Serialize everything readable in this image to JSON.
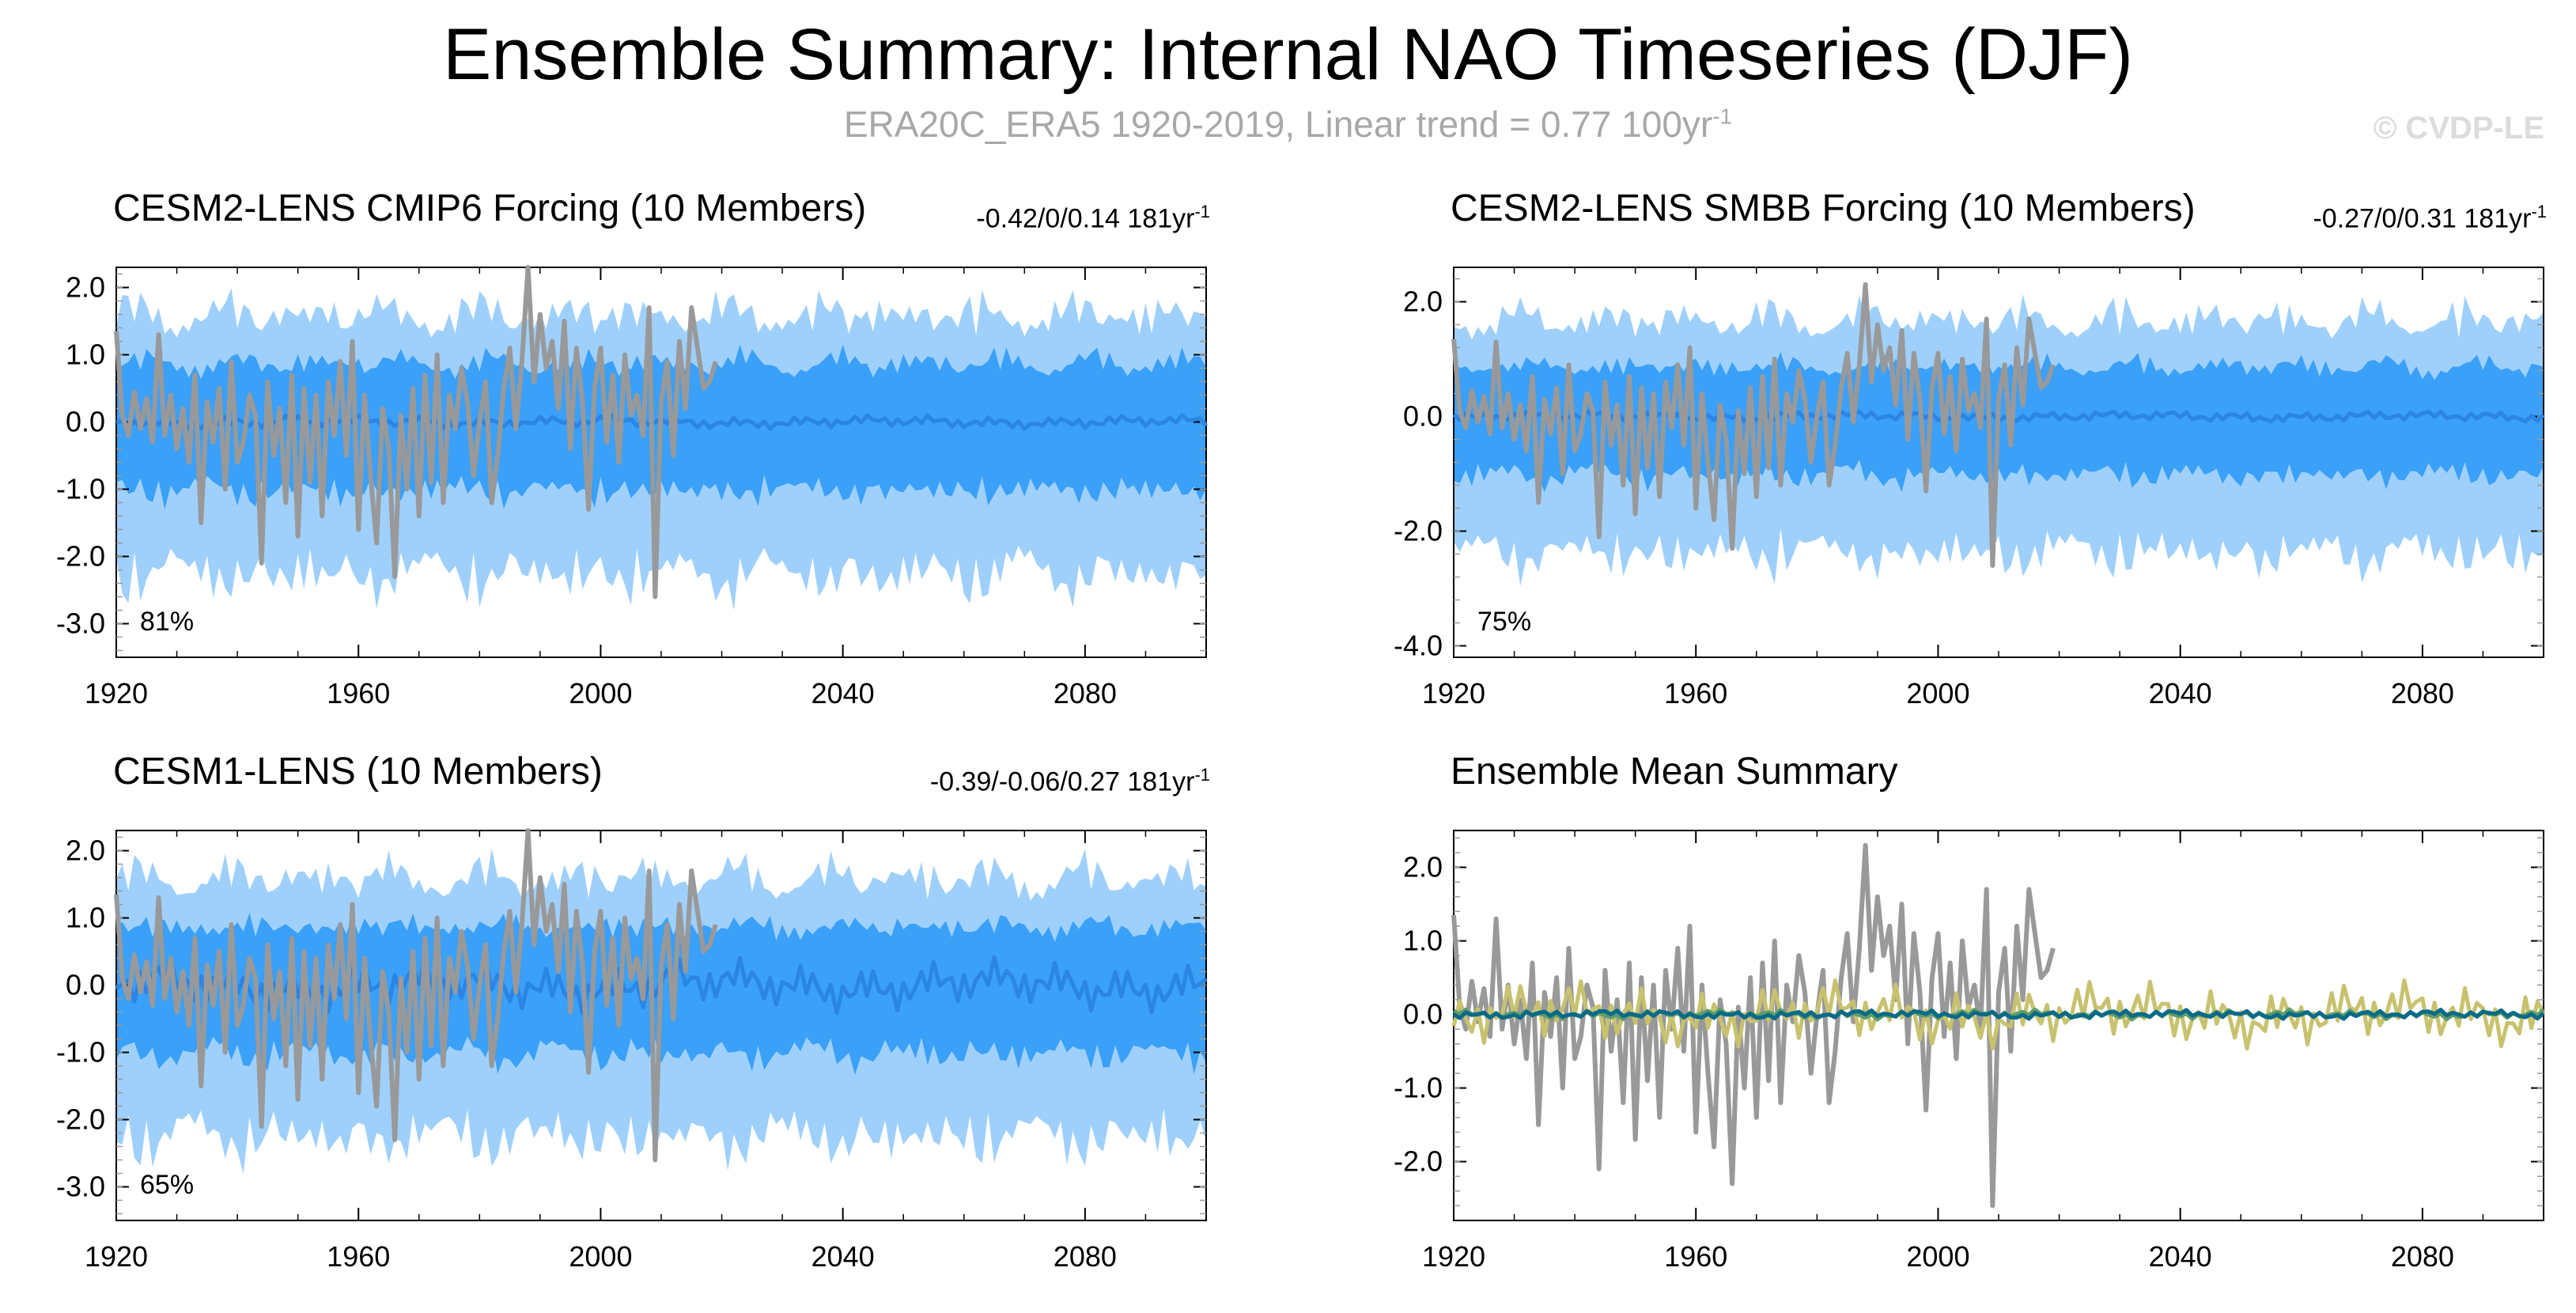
{
  "title": "Ensemble Summary: Internal NAO Timeseries (DJF)",
  "subtitle": {
    "text": "ERA20C_ERA5 1920-2019, Linear trend = 0.77 100yr",
    "sup": "-1"
  },
  "credit": "© CVDP-LE",
  "colors": {
    "outer_band": "#9fd0fb",
    "inner_band": "#3aa0f8",
    "ensemble_mean": "#2a85e4",
    "observations": "#999999",
    "cesm2_cmip6": "#0a6a87",
    "cesm2_smbb": "#5e9c6a",
    "cesm1": "#c8c26e"
  },
  "chart_data": [
    {
      "id": "cesm2-cmip6",
      "type": "area",
      "title": "CESM2-LENS CMIP6 Forcing (10 Members)",
      "stat": "-0.42/0/0.14 181yr",
      "stat_sup": "-1",
      "title_color": "#0a6a87",
      "percent_label": "81%",
      "xlim": [
        1920,
        2100
      ],
      "ylim": [
        -3.5,
        2.3
      ],
      "xticks": [
        1920,
        1960,
        2000,
        2040,
        2080
      ],
      "xtick_labels": [
        "1920",
        "1960",
        "2000",
        "2040",
        "2080"
      ],
      "yticks": [
        -3.0,
        -2.0,
        -1.0,
        0.0,
        1.0,
        2.0
      ],
      "ytick_labels": [
        "-3.0",
        "-2.0",
        "-1.0",
        "0.0",
        "1.0",
        "2.0"
      ],
      "series": [
        {
          "name": "ensemble range (min–max)",
          "kind": "outer-band",
          "amplitude": 1.9,
          "start": 1920,
          "end": 2100
        },
        {
          "name": "ensemble 10–90th percentile",
          "kind": "inner-band",
          "amplitude": 1.1,
          "start": 1920,
          "end": 2100
        },
        {
          "name": "ensemble mean",
          "kind": "mean",
          "amplitude": 0.08,
          "start": 1920,
          "end": 2100
        },
        {
          "name": "ERA20C_ERA5 observations",
          "kind": "obs",
          "start": 1920,
          "end": 2019
        }
      ]
    },
    {
      "id": "cesm2-smbb",
      "type": "area",
      "title": "CESM2-LENS SMBB Forcing (10 Members)",
      "stat": "-0.27/0/0.31 181yr",
      "stat_sup": "-1",
      "title_color": "#5e9c6a",
      "percent_label": "75%",
      "xlim": [
        1920,
        2100
      ],
      "ylim": [
        -4.2,
        2.6
      ],
      "xticks": [
        1920,
        1960,
        2000,
        2040,
        2080
      ],
      "xtick_labels": [
        "1920",
        "1960",
        "2000",
        "2040",
        "2080"
      ],
      "yticks": [
        -4.0,
        -2.0,
        0.0,
        2.0
      ],
      "ytick_labels": [
        "-4.0",
        "-2.0",
        "0.0",
        "2.0"
      ],
      "series": [
        {
          "name": "ensemble range (min–max)",
          "kind": "outer-band",
          "amplitude": 2.0,
          "start": 1920,
          "end": 2100
        },
        {
          "name": "ensemble 10–90th percentile",
          "kind": "inner-band",
          "amplitude": 1.1,
          "start": 1920,
          "end": 2100
        },
        {
          "name": "ensemble mean",
          "kind": "mean",
          "amplitude": 0.08,
          "start": 1920,
          "end": 2100
        },
        {
          "name": "ERA20C_ERA5 observations",
          "kind": "obs",
          "start": 1920,
          "end": 2019
        }
      ]
    },
    {
      "id": "cesm1",
      "type": "area",
      "title": "CESM1-LENS (10 Members)",
      "stat": "-0.39/-0.06/0.27 181yr",
      "stat_sup": "-1",
      "title_color": "#c8c26e",
      "percent_label": "65%",
      "xlim": [
        1920,
        2100
      ],
      "ylim": [
        -3.5,
        2.3
      ],
      "xticks": [
        1920,
        1960,
        2000,
        2040,
        2080
      ],
      "xtick_labels": [
        "1920",
        "1960",
        "2000",
        "2040",
        "2080"
      ],
      "yticks": [
        -3.0,
        -2.0,
        -1.0,
        0.0,
        1.0,
        2.0
      ],
      "ytick_labels": [
        "-3.0",
        "-2.0",
        "-1.0",
        "0.0",
        "1.0",
        "2.0"
      ],
      "series": [
        {
          "name": "ensemble range (min–max)",
          "kind": "outer-band",
          "amplitude": 1.9,
          "start": 1920,
          "end": 2100
        },
        {
          "name": "ensemble 10–90th percentile",
          "kind": "inner-band",
          "amplitude": 1.1,
          "start": 1920,
          "end": 2100
        },
        {
          "name": "ensemble mean",
          "kind": "mean",
          "amplitude": 0.3,
          "start": 1920,
          "end": 2100
        },
        {
          "name": "ERA20C_ERA5 observations",
          "kind": "obs",
          "start": 1920,
          "end": 2019
        }
      ]
    },
    {
      "id": "ensemble-mean-summary",
      "type": "line",
      "title": "Ensemble Mean Summary",
      "stat": "",
      "stat_sup": "",
      "title_color": "#000000",
      "percent_label": "",
      "xlim": [
        1920,
        2100
      ],
      "ylim": [
        -2.8,
        2.5
      ],
      "xticks": [
        1920,
        1960,
        2000,
        2040,
        2080
      ],
      "xtick_labels": [
        "1920",
        "1960",
        "2000",
        "2040",
        "2080"
      ],
      "yticks": [
        -2.0,
        -1.0,
        0.0,
        1.0,
        2.0
      ],
      "ytick_labels": [
        "-2.0",
        "-1.0",
        "0.0",
        "1.0",
        "2.0"
      ],
      "series": [
        {
          "name": "ERA20C_ERA5 observations",
          "kind": "obs",
          "start": 1920,
          "end": 2019
        },
        {
          "name": "CESM1-LENS ensemble mean",
          "kind": "summary-cesm1",
          "amplitude": 0.35,
          "start": 1920,
          "end": 2100
        },
        {
          "name": "CESM2-LENS SMBB ensemble mean",
          "kind": "summary-smbb",
          "amplitude": 0.05,
          "start": 1920,
          "end": 2100
        },
        {
          "name": "CESM2-LENS CMIP6 ensemble mean",
          "kind": "summary-cmip6",
          "amplitude": 0.05,
          "start": 1920,
          "end": 2100
        }
      ]
    }
  ],
  "observations": {
    "name": "ERA20C_ERA5 DJF NAO",
    "start_year": 1920,
    "values": [
      1.35,
      0.1,
      -0.2,
      0.45,
      -0.1,
      0.35,
      -0.3,
      1.3,
      -0.2,
      0.4,
      -0.4,
      0.2,
      -0.6,
      0.7,
      -1.5,
      0.3,
      -0.3,
      0.5,
      -1.0,
      0.9,
      -0.6,
      -0.3,
      0.4,
      0.1,
      -2.1,
      0.6,
      -0.5,
      0.2,
      -1.2,
      0.7,
      -1.7,
      0.5,
      -0.9,
      0.4,
      -1.4,
      0.6,
      -0.2,
      0.9,
      -0.5,
      1.2,
      -1.6,
      0.4,
      -0.8,
      -1.8,
      0.2,
      -0.4,
      -2.3,
      0.1,
      -1.0,
      0.5,
      -1.4,
      0.7,
      -0.9,
      1.0,
      -1.2,
      0.4,
      -0.1,
      0.8,
      0.3,
      -0.8,
      0.0,
      0.6,
      -1.2,
      -0.5,
      0.5,
      1.1,
      -0.1,
      0.9,
      2.3,
      0.6,
      1.6,
      0.8,
      1.2,
      0.2,
      1.5,
      -0.4,
      1.1,
      0.3,
      -1.3,
      0.5,
      1.1,
      -0.3,
      0.7,
      -0.6,
      1.0,
      0.1,
      0.4,
      -0.2,
      1.7,
      -2.6,
      0.3,
      0.9,
      -0.5,
      1.2,
      0.2,
      1.7,
      1.1,
      0.5,
      0.6,
      0.9
    ]
  }
}
